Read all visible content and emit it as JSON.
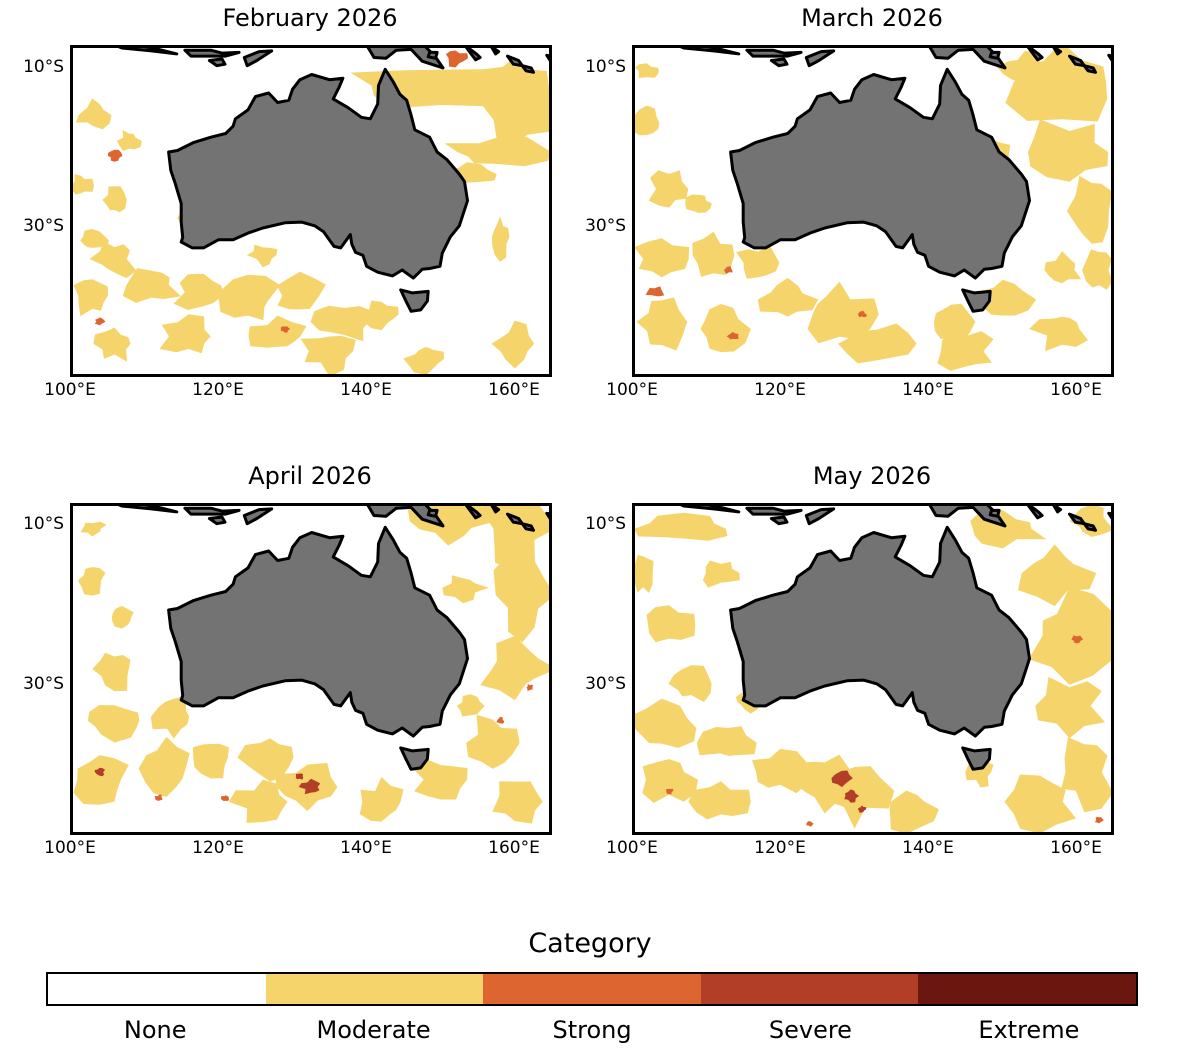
{
  "panels": [
    {
      "title": "February 2026"
    },
    {
      "title": "March 2026"
    },
    {
      "title": "April 2026"
    },
    {
      "title": "May 2026"
    }
  ],
  "axes": {
    "lat_labels": [
      "10°S",
      "30°S"
    ],
    "lon_labels": [
      "100°E",
      "120°E",
      "140°E",
      "160°E"
    ]
  },
  "legend": {
    "title": "Category",
    "categories": [
      {
        "label": "None",
        "color": "#ffffff"
      },
      {
        "label": "Moderate",
        "color": "#f5d46c"
      },
      {
        "label": "Strong",
        "color": "#dd6530"
      },
      {
        "label": "Severe",
        "color": "#b33e27"
      },
      {
        "label": "Extreme",
        "color": "#6b1710"
      }
    ]
  },
  "colors": {
    "land": "#737373",
    "coast": "#000000"
  }
}
